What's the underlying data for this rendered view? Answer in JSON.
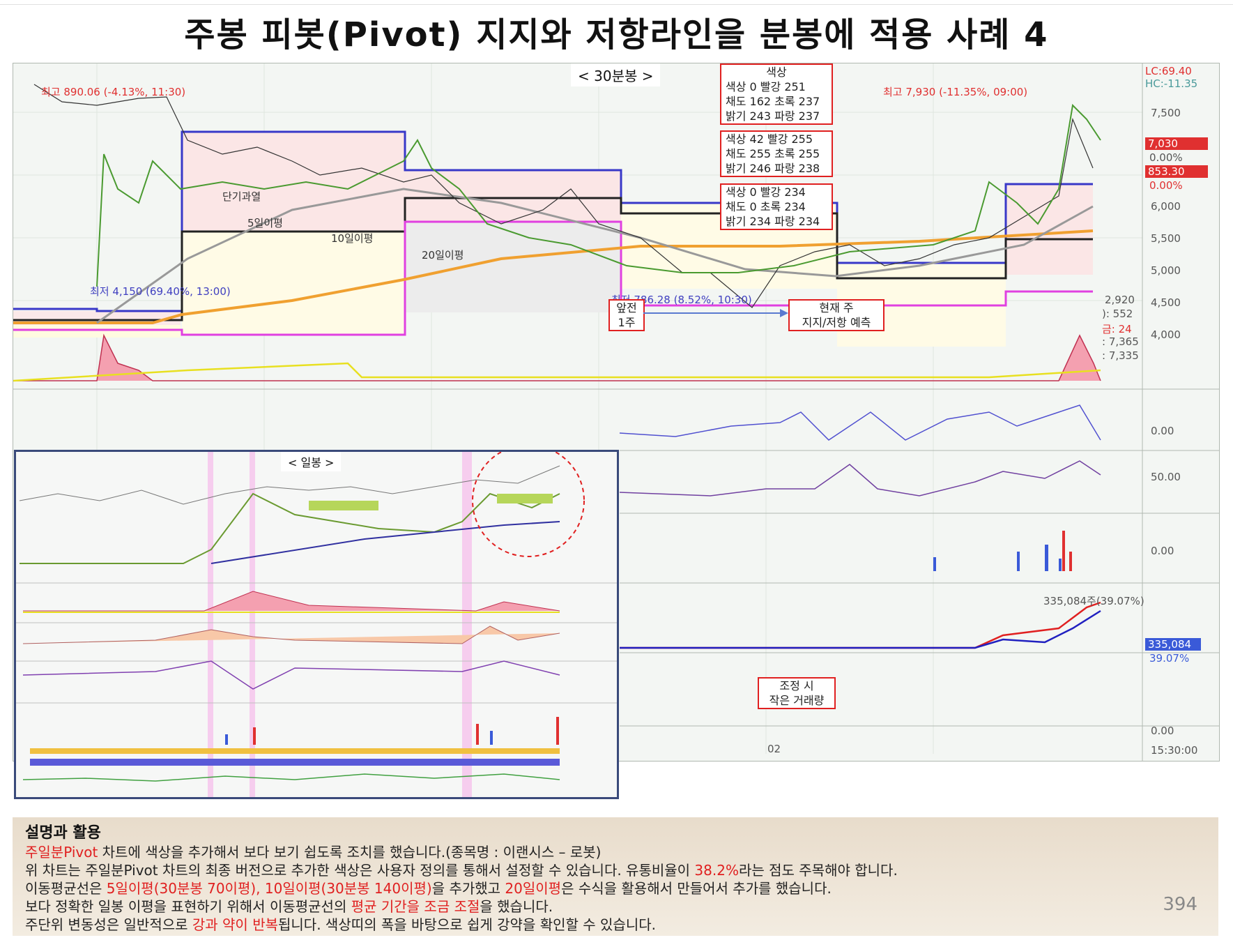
{
  "title": "주봉 피봇(Pivot) 지지와 저항라인을 분봉에 적용 사례 4",
  "main_chart": {
    "period_label": "< 30분봉 >",
    "high_left": "최고 890.06 (-4.13%, 11:30)",
    "high_right": "최고 7,930 (-11.35%, 09:00)",
    "low_left": "최저 4,150 (69.40%, 13:00)",
    "low_mid": "최저 786.28 (8.52%, 10:30)",
    "ma_labels": [
      "단기과열",
      "5일이평",
      "10일이평",
      "20일이평"
    ],
    "box_prev_week": [
      "앞전",
      "1주"
    ],
    "box_current_week": [
      "현재 주",
      "지지/저항 예측"
    ],
    "color_box_1": [
      "색상",
      "색상 0     빨강 251",
      "채도 162  초록 237",
      "밝기 243  파랑 237"
    ],
    "color_box_2": [
      "색상 42   빨강 255",
      "채도 255  초록 255",
      "밝기 246  파랑 238"
    ],
    "color_box_3": [
      "색상 0     빨강 234",
      "채도 0     초록 234",
      "밝기 234  파랑 234"
    ],
    "right_axis": [
      "LC:69.40",
      "HC:-11.35",
      "7,500",
      "7,030",
      "0.00%",
      "853.30",
      "0.00%",
      "6,000",
      "5,500",
      "5,000",
      "4,500",
      "4,000"
    ],
    "left_axis_info": [
      "2,920",
      "): 552",
      "금: 24",
      ": 7,365",
      ": 7,335"
    ],
    "sub_axis": [
      "0.00",
      "50.00",
      "0.00",
      "335,084주(39.07%)",
      "335,084",
      "39.07%",
      "0.00",
      "15:30:00"
    ],
    "x_tick": "02",
    "volume_box": [
      "조정 시",
      "작은 거래량"
    ]
  },
  "inset_chart": {
    "period_label": "< 일봉 >"
  },
  "description": {
    "heading": "설명과 활용",
    "line1_red": "주일분Pivot",
    "line1_rest": " 차트에 색상을 추가해서 보다 보기 쉽도록 조치를 했습니다.(종목명 : 이랜시스 – 로봇)",
    "line2_a": "위 차트는 주일분Pivot 차트의 최종 버전으로 추가한 색상은 사용자 정의를 통해서 설정할 수 있습니다. 유통비율이 ",
    "line2_red": "38.2%",
    "line2_b": "라는 점도 주목해야 합니다.",
    "line3_a": "이동평균선은 ",
    "line3_red1": "5일이평(30분봉 70이평), 10일이평(30분봉 140이평)",
    "line3_b": "을 추가했고 ",
    "line3_red2": "20일이평",
    "line3_c": "은 수식을 활용해서 만들어서 추가를 했습니다.",
    "line4_a": "보다 정확한 일봉 이평을 표현하기 위해서 이동평균선의 ",
    "line4_red": "평균 기간을 조금 조절",
    "line4_b": "을 했습니다.",
    "line5_a": "주단위 변동성은 일반적으로 ",
    "line5_red": "강과 약이 반복",
    "line5_b": "됩니다. 색상띠의 폭을 바탕으로 쉽게 강약을 확인할 수 있습니다.",
    "page_number": "394"
  }
}
